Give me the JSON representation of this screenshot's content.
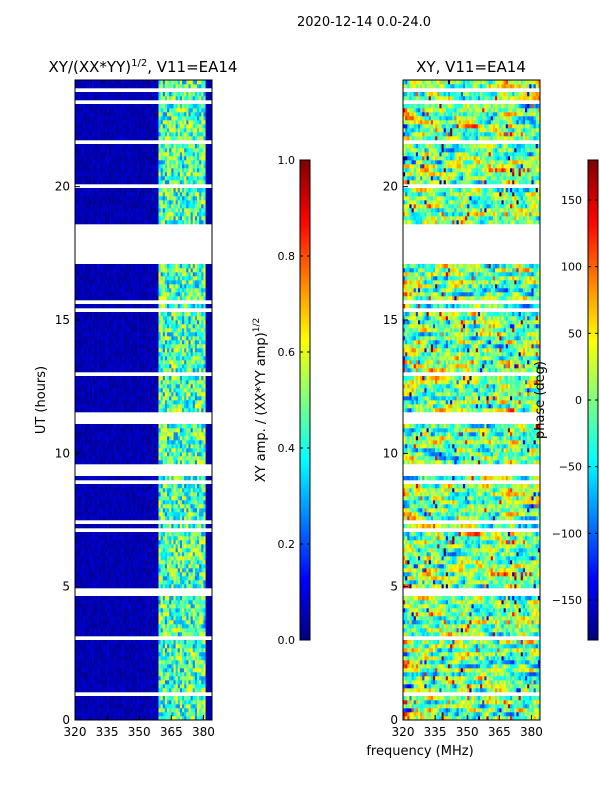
{
  "figure": {
    "suptitle": "2020-12-14 0.0-24.0",
    "xlabel": "frequency (MHz)"
  },
  "colors": {
    "jet": [
      "#00007f",
      "#0000ff",
      "#007fff",
      "#00ffff",
      "#7fff7f",
      "#ffff00",
      "#ff7f00",
      "#ff0000",
      "#7f0000"
    ],
    "gap": "#ffffff"
  },
  "chart_data": [
    {
      "type": "heatmap",
      "title_main": "XY/(XX*YY)",
      "title_sup": "1/2",
      "title_tail": ", V11=EA14",
      "ylabel": "UT (hours)",
      "xlabel": "frequency (MHz)",
      "xlim": [
        320,
        384
      ],
      "ylim": [
        0,
        24
      ],
      "xticks": [
        "320",
        "335",
        "350",
        "365",
        "380"
      ],
      "xtick_values": [
        320,
        335,
        350,
        365,
        380
      ],
      "yticks": [
        "0",
        "5",
        "10",
        "15",
        "20"
      ],
      "ytick_values": [
        0,
        5,
        10,
        15,
        20
      ],
      "description": "normalized XY amplitude; low (~0.05) below 359 MHz, 0.3-0.6 in 362-380 MHz band",
      "gap_ranges_hours": [
        [
          17.3,
          18.4
        ],
        [
          11.2,
          11.6
        ],
        [
          9.2,
          9.5
        ]
      ],
      "colorbar": {
        "label_main": "XY amp. / (XX*YY amp)",
        "label_sup": "1/2",
        "range": [
          0.0,
          1.0
        ],
        "ticks": [
          "0.0",
          "0.2",
          "0.4",
          "0.6",
          "0.8",
          "1.0"
        ],
        "tick_values": [
          0.0,
          0.2,
          0.4,
          0.6,
          0.8,
          1.0
        ]
      }
    },
    {
      "type": "heatmap",
      "title": "XY, V11=EA14",
      "xlim": [
        320,
        384
      ],
      "ylim": [
        0,
        24
      ],
      "xticks": [
        "320",
        "335",
        "350",
        "365",
        "380"
      ],
      "xtick_values": [
        320,
        335,
        350,
        365,
        380
      ],
      "yticks": [
        "0",
        "5",
        "10",
        "15",
        "20"
      ],
      "ytick_values": [
        0,
        5,
        10,
        15,
        20
      ],
      "description": "XY phase, noisy across full band (-180 to 180 deg)",
      "gap_ranges_hours": [
        [
          17.3,
          18.4
        ],
        [
          11.2,
          11.6
        ],
        [
          9.2,
          9.5
        ]
      ],
      "colorbar": {
        "label": "phase (deg)",
        "range": [
          -180,
          180
        ],
        "ticks": [
          "−150",
          "−100",
          "−50",
          "0",
          "50",
          "100",
          "150"
        ],
        "tick_values": [
          -150,
          -100,
          -50,
          0,
          50,
          100,
          150
        ]
      }
    }
  ]
}
